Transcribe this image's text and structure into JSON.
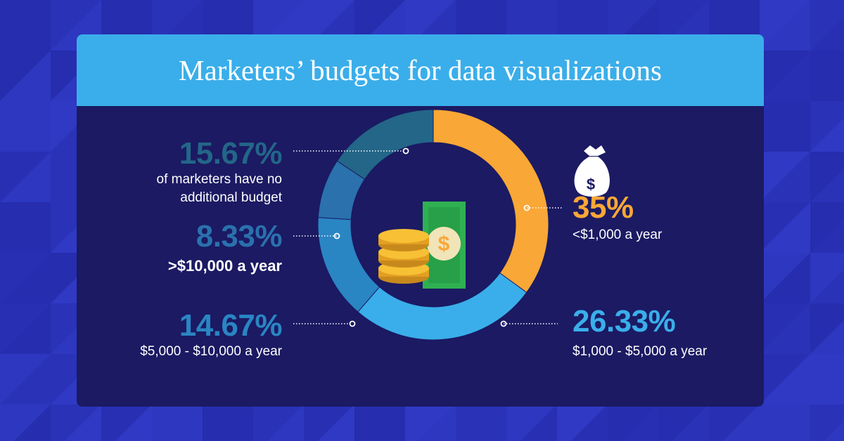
{
  "header": {
    "title": "Marketers’ budgets for data visualizations"
  },
  "colors": {
    "background": "#2a32b8",
    "card": "#1b1a63",
    "header": "#3aaeea",
    "orange": "#f9a736",
    "light_blue": "#3aaeea",
    "mid_blue": "#2a85c3",
    "steel_blue": "#2a71ad",
    "dark_teal": "#236688"
  },
  "chart_data": {
    "type": "pie",
    "donut": true,
    "slices": [
      {
        "value": 35,
        "label": "35%",
        "description": "<$1,000 a year",
        "color": "#f9a736"
      },
      {
        "value": 26.33,
        "label": "26.33%",
        "description": "$1,000 - $5,000 a year",
        "color": "#3aaeea"
      },
      {
        "value": 14.67,
        "label": "14.67%",
        "description": "$5,000 - $10,000 a year",
        "color": "#2a85c3"
      },
      {
        "value": 8.33,
        "label": "8.33%",
        "description": ">$10,000 a year",
        "color": "#2a71ad"
      },
      {
        "value": 15.67,
        "label": "15.67%",
        "description": "of marketers have no additional budget",
        "color": "#236688"
      }
    ]
  },
  "icons": {
    "money_bag": "money-bag-icon",
    "center": "coins-and-banknote-icon"
  }
}
